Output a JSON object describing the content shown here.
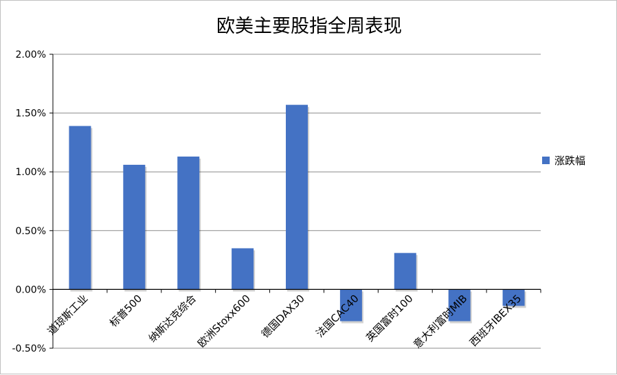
{
  "chart_data": {
    "type": "bar",
    "title": "欧美主要股指全周表现",
    "categories": [
      "道琼斯工业",
      "标普500",
      "纳斯达克综合",
      "欧洲Stoxx600",
      "德国DAX30",
      "法国CAC40",
      "英国富时100",
      "意大利富时MIB",
      "西班牙IBEX35"
    ],
    "series": [
      {
        "name": "涨跌幅",
        "color": "#4472C4",
        "values": [
          1.39,
          1.06,
          1.13,
          0.35,
          1.57,
          -0.27,
          0.31,
          -0.27,
          -0.14
        ]
      }
    ],
    "ylim": [
      -0.5,
      2.0
    ],
    "yticks": [
      -0.5,
      0.0,
      0.5,
      1.0,
      1.5,
      2.0
    ],
    "ytick_labels": [
      "-0.50%",
      "0.00%",
      "0.50%",
      "1.00%",
      "1.50%",
      "2.00%"
    ],
    "grid": true,
    "legend": "right"
  }
}
